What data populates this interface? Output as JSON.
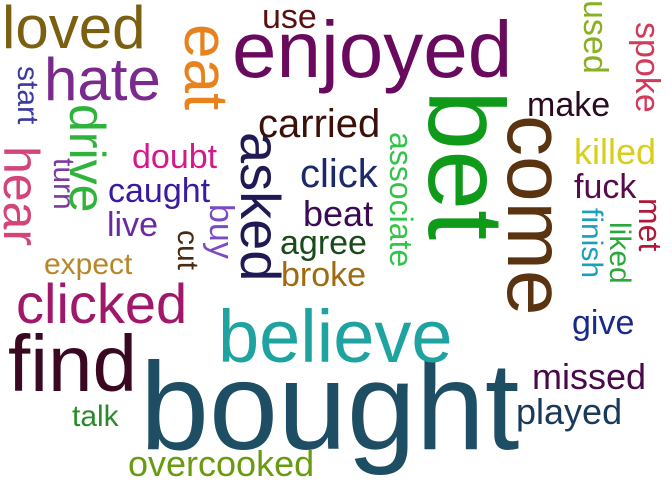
{
  "words": [
    {
      "text": "bought",
      "color": "#1d4e63"
    },
    {
      "text": "bet",
      "color": "#0f9a1a"
    },
    {
      "text": "enjoyed",
      "color": "#6a0a5e"
    },
    {
      "text": "come",
      "color": "#5a3410"
    },
    {
      "text": "believe",
      "color": "#1fa3a0"
    },
    {
      "text": "eat",
      "color": "#e8821c"
    },
    {
      "text": "find",
      "color": "#3a0820"
    },
    {
      "text": "hear",
      "color": "#d2447a"
    },
    {
      "text": "loved",
      "color": "#7a6010"
    },
    {
      "text": "hate",
      "color": "#7a2a8c"
    },
    {
      "text": "asked",
      "color": "#1f1a55"
    },
    {
      "text": "clicked",
      "color": "#a0186a"
    },
    {
      "text": "drive",
      "color": "#2fb33a"
    },
    {
      "text": "use",
      "color": "#5a1010"
    },
    {
      "text": "used",
      "color": "#88b020"
    },
    {
      "text": "spoke",
      "color": "#d23a5a"
    },
    {
      "text": "start",
      "color": "#3a3aa0"
    },
    {
      "text": "make",
      "color": "#2a0a20"
    },
    {
      "text": "carried",
      "color": "#3a1008"
    },
    {
      "text": "associate",
      "color": "#33c44a"
    },
    {
      "text": "killed",
      "color": "#d8cf1a"
    },
    {
      "text": "doubt",
      "color": "#d41a8a"
    },
    {
      "text": "turn",
      "color": "#7a3aa0"
    },
    {
      "text": "click",
      "color": "#1a2a6a"
    },
    {
      "text": "caught",
      "color": "#3a1aa0"
    },
    {
      "text": "fuck",
      "color": "#5a0a4a"
    },
    {
      "text": "met",
      "color": "#b01a3a"
    },
    {
      "text": "beat",
      "color": "#3a0a55"
    },
    {
      "text": "buy",
      "color": "#7a4ac4"
    },
    {
      "text": "live",
      "color": "#6a2aa0"
    },
    {
      "text": "finish",
      "color": "#1aa0b8"
    },
    {
      "text": "liked",
      "color": "#2aa83a"
    },
    {
      "text": "agree",
      "color": "#1a4a1a"
    },
    {
      "text": "cut",
      "color": "#4a2a10"
    },
    {
      "text": "expect",
      "color": "#b8862a"
    },
    {
      "text": "broke",
      "color": "#a06a10"
    },
    {
      "text": "give",
      "color": "#1a2a8a"
    },
    {
      "text": "missed",
      "color": "#4a0a4a"
    },
    {
      "text": "played",
      "color": "#1a3a5a"
    },
    {
      "text": "talk",
      "color": "#2a8a2a"
    },
    {
      "text": "overcooked",
      "color": "#6a9a10"
    }
  ]
}
